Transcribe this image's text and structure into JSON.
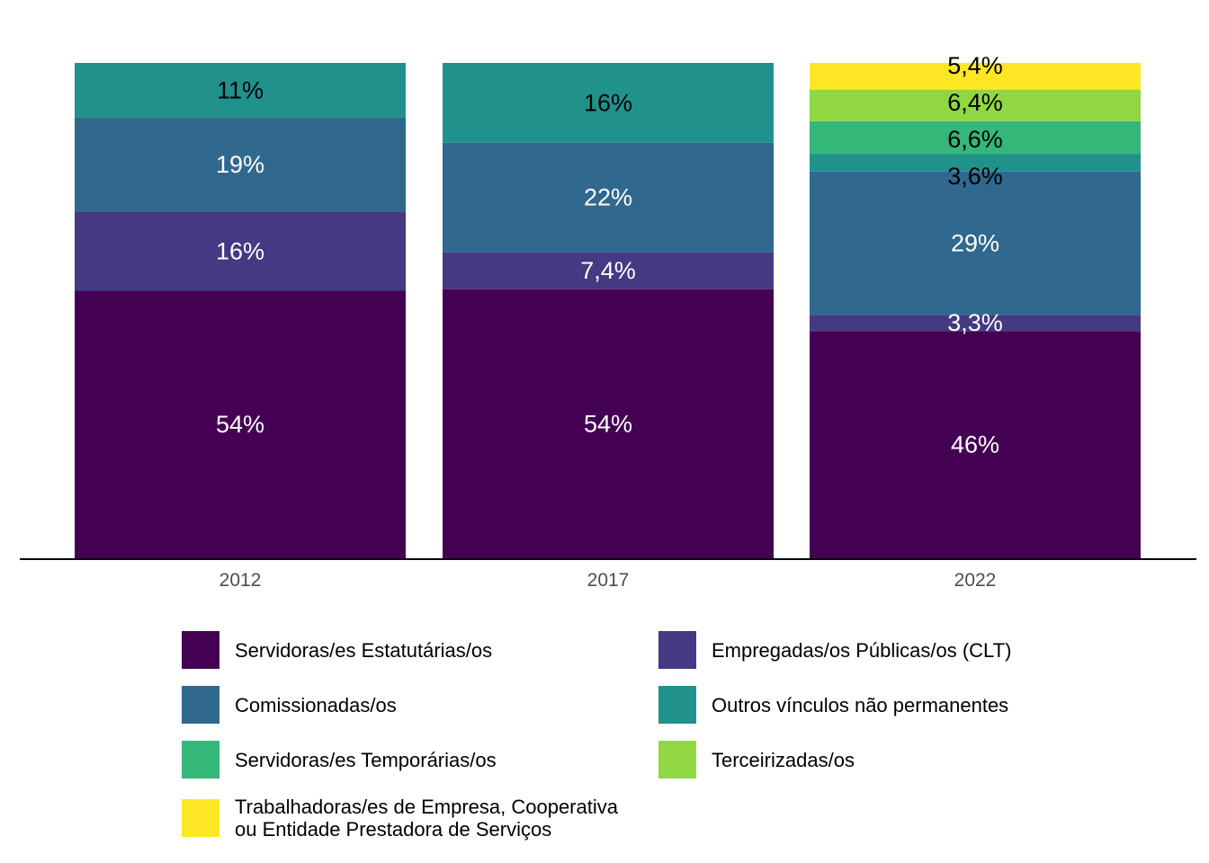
{
  "chart_data": {
    "type": "bar",
    "stacked": true,
    "normalized": true,
    "categories": [
      "2012",
      "2017",
      "2022"
    ],
    "series": [
      {
        "name": "Servidoras/es Estatutárias/os",
        "color": "#440154",
        "values": [
          54,
          54,
          46
        ],
        "labels": [
          "54%",
          "54%",
          "46%"
        ],
        "label_color": "#ffffff"
      },
      {
        "name": "Empregadas/os Públicas/os (CLT)",
        "color": "#443983",
        "values": [
          16,
          7.4,
          3.3
        ],
        "labels": [
          "16%",
          "7,4%",
          "3,3%"
        ],
        "label_color": "#ffffff"
      },
      {
        "name": "Comissionadas/os",
        "color": "#31688e",
        "values": [
          19,
          22,
          29
        ],
        "labels": [
          "19%",
          "22%",
          "29%"
        ],
        "label_color": "#ffffff"
      },
      {
        "name": "Outros vínculos não permanentes",
        "color": "#21918c",
        "values": [
          11,
          16,
          3.6
        ],
        "labels": [
          "11%",
          "16%",
          "3,6%"
        ],
        "label_color": "#000000"
      },
      {
        "name": "Servidoras/es Temporárias/os",
        "color": "#35b779",
        "values": [
          0,
          0,
          6.6
        ],
        "labels": [
          "",
          "",
          "6,6%"
        ],
        "label_color": "#000000"
      },
      {
        "name": "Terceirizadas/os",
        "color": "#90d743",
        "values": [
          0,
          0,
          6.4
        ],
        "labels": [
          "",
          "",
          "6,4%"
        ],
        "label_color": "#000000"
      },
      {
        "name": "Trabalhadoras/es de Empresa, Cooperativa\nou Entidade Prestadora de Serviços",
        "color": "#fde725",
        "values": [
          0,
          0,
          5.4
        ],
        "labels": [
          "",
          "",
          "5,4%"
        ],
        "label_color": "#000000"
      }
    ],
    "ylim": [
      0,
      100
    ],
    "title": "",
    "xlabel": "",
    "ylabel": "",
    "grid": false,
    "legend_position": "bottom"
  }
}
